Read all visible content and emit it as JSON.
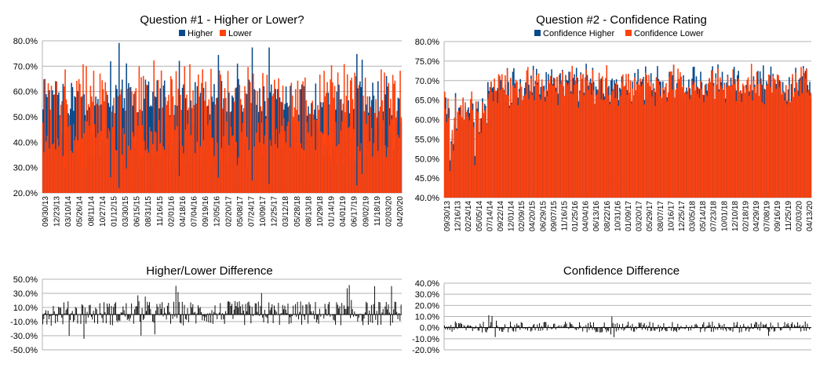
{
  "colors": {
    "blue": "#0a4a8c",
    "orange": "#ff420e",
    "grid": "#b3b3b3",
    "axis": "#b3b3b3",
    "diff": "#000000"
  },
  "chart_data": [
    {
      "id": "q1",
      "type": "bar",
      "title": "Question #1 - Higher or Lower?",
      "legend": [
        "Higher",
        "Lower"
      ],
      "legend_placement": "top",
      "series": [
        {
          "name": "Higher",
          "color": "#0a4a8c"
        },
        {
          "name": "Lower",
          "color": "#ff420e"
        }
      ],
      "ylim": [
        0.2,
        0.8
      ],
      "yticks": [
        "80.0%",
        "70.0%",
        "60.0%",
        "50.0%",
        "40.0%",
        "30.0%",
        "20.0%"
      ],
      "xticks": [
        "09/30/13",
        "12/23/13",
        "03/10/14",
        "05/26/14",
        "08/11/14",
        "10/27/14",
        "01/12/15",
        "03/30/15",
        "06/15/15",
        "08/31/15",
        "11/16/15",
        "02/01/16",
        "04/18/16",
        "07/04/16",
        "09/19/16",
        "12/05/16",
        "02/20/17",
        "05/08/17",
        "07/24/17",
        "10/09/17",
        "12/25/17",
        "03/12/18",
        "05/28/18",
        "08/13/18",
        "10/29/18",
        "01/14/19",
        "04/01/19",
        "06/17/19",
        "09/02/19",
        "11/18/19",
        "02/03/20",
        "04/20/20"
      ],
      "grid": true
    },
    {
      "id": "q2",
      "type": "bar",
      "title": "Question #2 - Confidence Rating",
      "legend": [
        "Confidence Higher",
        "Confidence Lower"
      ],
      "legend_placement": "top",
      "series": [
        {
          "name": "Confidence Higher",
          "color": "#0a4a8c"
        },
        {
          "name": "Confidence Lower",
          "color": "#ff420e"
        }
      ],
      "ylim": [
        0.4,
        0.8
      ],
      "yticks": [
        "80.0%",
        "75.0%",
        "70.0%",
        "65.0%",
        "60.0%",
        "55.0%",
        "50.0%",
        "45.0%",
        "40.0%"
      ],
      "xticks": [
        "09/30/13",
        "12/16/13",
        "02/24/14",
        "05/05/14",
        "07/14/14",
        "09/22/14",
        "12/01/14",
        "02/09/15",
        "04/20/15",
        "06/29/15",
        "09/07/15",
        "11/16/15",
        "01/25/16",
        "04/04/16",
        "06/13/16",
        "08/22/16",
        "10/31/16",
        "01/09/17",
        "03/20/17",
        "05/29/17",
        "08/07/17",
        "10/16/17",
        "12/25/17",
        "03/05/18",
        "05/14/18",
        "07/23/18",
        "10/01/18",
        "12/10/18",
        "02/18/19",
        "04/29/19",
        "07/08/19",
        "09/16/19",
        "11/25/19",
        "02/03/20",
        "04/13/20"
      ],
      "grid": true
    },
    {
      "id": "d1",
      "type": "bar",
      "title": "Higher/Lower Difference",
      "ylim": [
        -0.5,
        0.5
      ],
      "yticks": [
        "50.0%",
        "30.0%",
        "10.0%",
        "-10.0%",
        "-30.0%",
        "-50.0%"
      ],
      "grid": true
    },
    {
      "id": "d2",
      "type": "bar",
      "title": "Confidence Difference",
      "ylim": [
        -0.2,
        0.4
      ],
      "yticks": [
        "40.0%",
        "30.0%",
        "20.0%",
        "10.0%",
        "0.0%",
        "-10.0%",
        "-20.0%"
      ],
      "grid": true
    }
  ]
}
